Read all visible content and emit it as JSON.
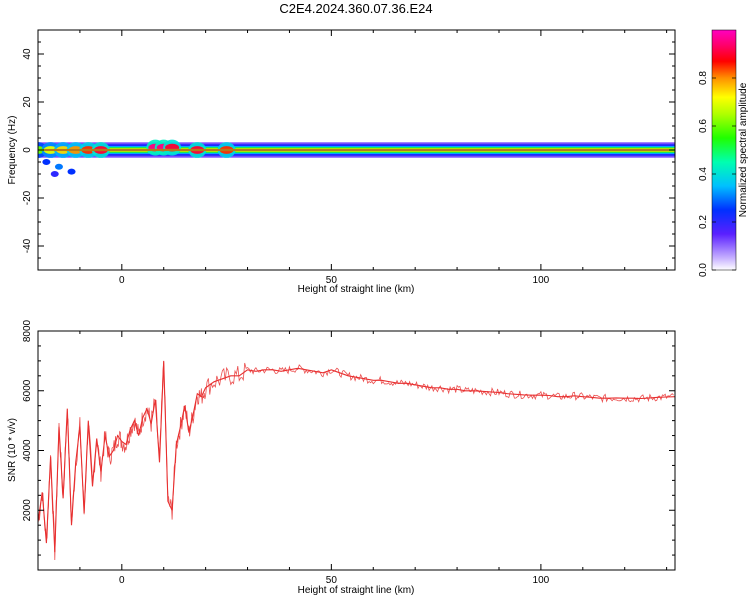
{
  "title": "C2E4.2024.360.07.36.E24",
  "chart_data": [
    {
      "type": "heatmap",
      "xlabel": "Height of straight line (km)",
      "ylabel": "Frequency (Hz)",
      "xlim": [
        -20,
        132
      ],
      "ylim": [
        -50,
        50
      ],
      "xticks": [
        0,
        50,
        100
      ],
      "yticks": [
        -40,
        -20,
        0,
        20,
        40
      ],
      "grid": false,
      "colorbar": {
        "label": "Normalized spectral amplitude",
        "range": [
          0,
          1
        ],
        "ticks": [
          0.0,
          0.2,
          0.4,
          0.6,
          0.8
        ]
      },
      "features": {
        "dominant_frequency_hz": 0,
        "main_band_start_km": -20,
        "main_band_end_km": 132,
        "core_amplitude": 1.0,
        "halo_amplitude": 0.2,
        "noisy_region_km": [
          -20,
          28
        ],
        "noisy_region_bands": [
          {
            "x": -20,
            "freq": 0,
            "amp": 0.6
          },
          {
            "x": -17,
            "freq": 0,
            "amp": 0.7
          },
          {
            "x": -14,
            "freq": 0,
            "amp": 0.75
          },
          {
            "x": -11,
            "freq": 0,
            "amp": 0.8
          },
          {
            "x": -8,
            "freq": 0,
            "amp": 0.85
          },
          {
            "x": -5,
            "freq": 0,
            "amp": 0.9
          },
          {
            "x": 8,
            "freq": 1,
            "amp": 0.95
          },
          {
            "x": 10,
            "freq": 1,
            "amp": 0.95
          },
          {
            "x": 12,
            "freq": 1,
            "amp": 0.9
          },
          {
            "x": 18,
            "freq": 0,
            "amp": 0.9
          },
          {
            "x": 25,
            "freq": 0,
            "amp": 0.85
          }
        ],
        "weak_spots": [
          {
            "x": -18,
            "freq": -5,
            "amp": 0.15
          },
          {
            "x": -15,
            "freq": -7,
            "amp": 0.2
          },
          {
            "x": -12,
            "freq": -9,
            "amp": 0.15
          },
          {
            "x": -16,
            "freq": -10,
            "amp": 0.1
          }
        ]
      }
    },
    {
      "type": "line",
      "xlabel": "Height of straight line (km)",
      "ylabel": "SNR (10 * v/v)",
      "xlim": [
        -20,
        132
      ],
      "ylim": [
        0,
        8000
      ],
      "xticks": [
        0,
        50,
        100
      ],
      "yticks": [
        2000,
        4000,
        6000,
        8000
      ],
      "grid": false,
      "color": "#e83030",
      "x": [
        -20,
        -19,
        -18,
        -17,
        -16,
        -15,
        -14,
        -13,
        -12,
        -11,
        -10,
        -9,
        -8,
        -7,
        -6,
        -5,
        -4,
        -3,
        -2,
        -1,
        0,
        1,
        2,
        3,
        4,
        5,
        6,
        7,
        8,
        9,
        10,
        11,
        12,
        13,
        14,
        15,
        16,
        17,
        18,
        19,
        20,
        22,
        24,
        26,
        28,
        30,
        32,
        34,
        36,
        38,
        40,
        42,
        44,
        46,
        48,
        50,
        52,
        54,
        56,
        58,
        60,
        62,
        64,
        66,
        68,
        70,
        72,
        74,
        76,
        78,
        80,
        82,
        84,
        86,
        88,
        90,
        92,
        94,
        96,
        98,
        100,
        102,
        104,
        106,
        108,
        110,
        112,
        114,
        116,
        118,
        120,
        122,
        124,
        126,
        128,
        130,
        132
      ],
      "y": [
        1600,
        2600,
        900,
        3800,
        600,
        4800,
        2400,
        5400,
        1500,
        3600,
        4800,
        1900,
        5000,
        2800,
        4400,
        3300,
        4500,
        3800,
        4000,
        4500,
        4300,
        4200,
        4700,
        5000,
        4500,
        5100,
        5400,
        4900,
        5700,
        3600,
        7000,
        2300,
        2000,
        4200,
        4800,
        5500,
        4600,
        5200,
        5900,
        5800,
        6100,
        6300,
        6400,
        6500,
        6500,
        6700,
        6650,
        6700,
        6700,
        6650,
        6700,
        6750,
        6700,
        6650,
        6600,
        6700,
        6600,
        6500,
        6450,
        6400,
        6350,
        6350,
        6300,
        6250,
        6250,
        6200,
        6150,
        6100,
        6100,
        6050,
        6050,
        6000,
        6000,
        5980,
        5960,
        5940,
        5900,
        5880,
        5860,
        5850,
        5850,
        5840,
        5800,
        5800,
        5830,
        5800,
        5780,
        5750,
        5750,
        5760,
        5750,
        5750,
        5740,
        5760,
        5780,
        5790,
        5800
      ]
    }
  ],
  "colors": {
    "line": "#e83030",
    "axis": "#000000",
    "background": "#ffffff"
  }
}
